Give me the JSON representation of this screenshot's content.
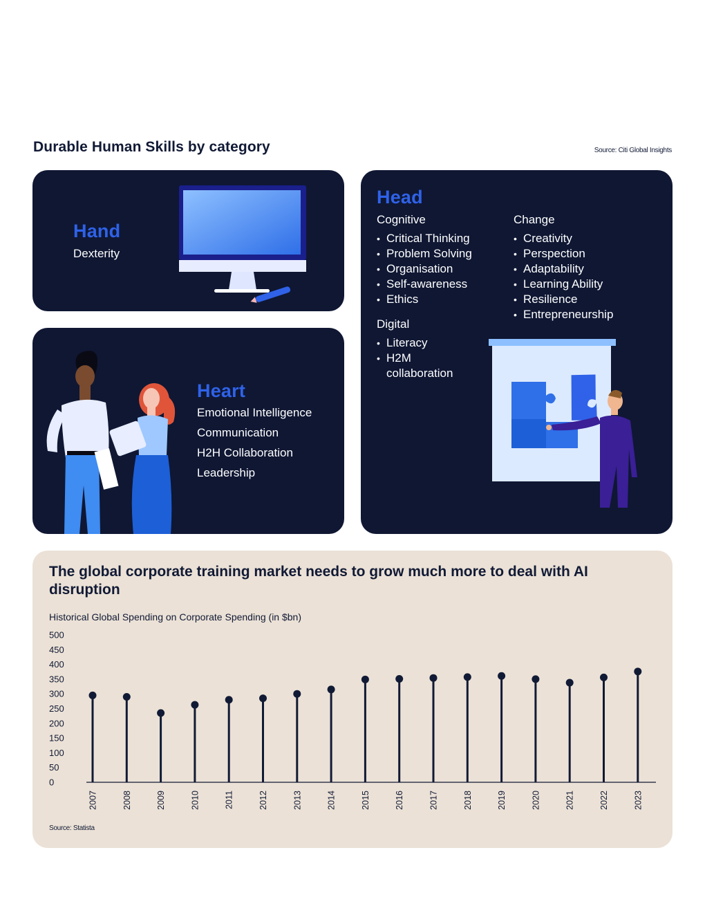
{
  "header": {
    "title": "Durable Human Skills by category",
    "source": "Source: Citi Global Insights"
  },
  "hand": {
    "title": "Hand",
    "skills": [
      "Dexterity"
    ]
  },
  "heart": {
    "title": "Heart",
    "skills": [
      "Emotional Intelligence",
      "Communication",
      "H2H Collaboration",
      "Leadership"
    ]
  },
  "head": {
    "title": "Head",
    "cognitive": {
      "label": "Cognitive",
      "items": [
        "Critical Thinking",
        "Problem Solving",
        "Organisation",
        "Self-awareness",
        "Ethics"
      ]
    },
    "change": {
      "label": "Change",
      "items": [
        "Creativity",
        "Perspection",
        "Adaptability",
        "Learning Ability",
        "Resilience",
        "Entrepreneurship"
      ]
    },
    "digital": {
      "label": "Digital",
      "items": [
        "Literacy",
        "H2M collaboration"
      ],
      "h2m_line1": "H2M",
      "h2m_line2": "collaboration"
    }
  },
  "chart_section": {
    "title": "The global corporate training market needs to grow much more to deal with AI disruption",
    "subtitle": "Historical Global Spending on Corporate Spending (in $bn)",
    "source": "Source: Statista"
  },
  "chart_data": {
    "type": "lollipop",
    "categories": [
      "2007",
      "2008",
      "2009",
      "2010",
      "2011",
      "2012",
      "2013",
      "2014",
      "2015",
      "2016",
      "2017",
      "2018",
      "2019",
      "2020",
      "2021",
      "2022",
      "2023"
    ],
    "values": [
      295,
      290,
      235,
      263,
      280,
      285,
      300,
      315,
      349,
      351,
      354,
      357,
      361,
      350,
      338,
      356,
      376
    ],
    "ylim": [
      0,
      500
    ],
    "yticks": [
      0,
      50,
      100,
      150,
      200,
      250,
      300,
      350,
      400,
      450,
      500
    ],
    "colors": {
      "mark": "#111a35"
    }
  },
  "colors": {
    "card_bg": "#0f1733",
    "accent_blue": "#2f62e8",
    "chart_bg": "#ebe1d6"
  }
}
